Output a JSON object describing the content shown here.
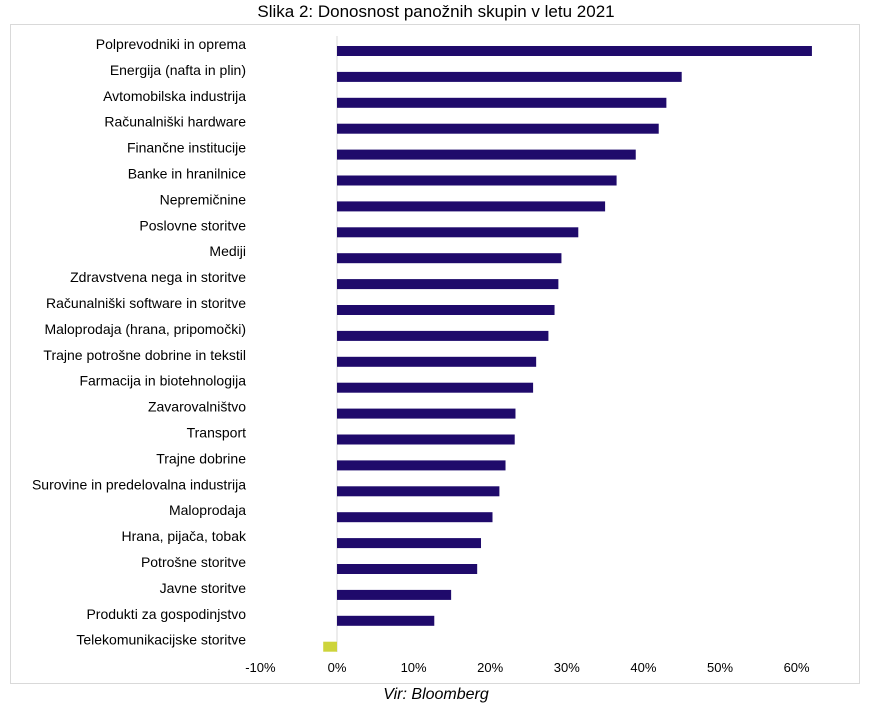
{
  "title": "Slika 2: Donosnost panožnih skupin v letu 2021",
  "source": "Vir: Bloomberg",
  "colors": {
    "positive": "#1f0a6b",
    "negative": "#cdd43b",
    "zero_line": "#d9d9d9",
    "frame": "#d9d9d9"
  },
  "chart_data": {
    "type": "bar",
    "orientation": "horizontal",
    "categories": [
      "Polprevodniki in oprema",
      "Energija (nafta in plin)",
      "Avtomobilska industrija",
      "Računalniški hardware",
      "Finančne institucije",
      "Banke in hranilnice",
      "Nepremičnine",
      "Poslovne storitve",
      "Mediji",
      "Zdravstvena nega in storitve",
      "Računalniški software in storitve",
      "Maloprodaja (hrana, pripomočki)",
      "Trajne potrošne dobrine in tekstil",
      "Farmacija in biotehnologija",
      "Zavarovalništvo",
      "Transport",
      "Trajne dobrine",
      "Surovine in predelovalna industrija",
      "Maloprodaja",
      "Hrana, pijača, tobak",
      "Potrošne storitve",
      "Javne storitve",
      "Produkti za gospodinjstvo",
      "Telekomunikacijske storitve"
    ],
    "values": [
      62,
      45,
      43,
      42,
      39,
      36.5,
      35,
      31.5,
      29.3,
      28.9,
      28.4,
      27.6,
      26,
      25.6,
      23.3,
      23.2,
      22,
      21.2,
      20.3,
      18.8,
      18.3,
      14.9,
      12.7,
      -1.8
    ],
    "x_tick_labels": [
      "-10%",
      "0%",
      "10%",
      "20%",
      "30%",
      "40%",
      "50%",
      "60%"
    ],
    "x_ticks": [
      -10,
      0,
      10,
      20,
      30,
      40,
      50,
      60
    ],
    "xlim": [
      -10,
      67
    ],
    "unit": "%",
    "grid": false,
    "legend": "none"
  }
}
